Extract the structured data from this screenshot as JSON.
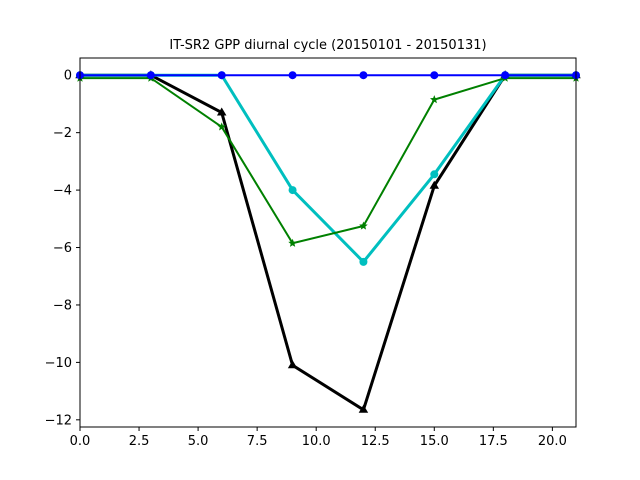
{
  "chart_data": {
    "type": "line",
    "title": "IT-SR2 GPP diurnal cycle (20150101 - 20150131)",
    "xlabel": "",
    "ylabel": "",
    "xlim": [
      0,
      21
    ],
    "ylim": [
      -12.25,
      0.6
    ],
    "grid": false,
    "legend": "none",
    "x": [
      0,
      3,
      6,
      9,
      12,
      15,
      18,
      21
    ],
    "x_ticks": [
      0.0,
      2.5,
      5.0,
      7.5,
      10.0,
      12.5,
      15.0,
      17.5,
      20.0
    ],
    "x_tick_labels": [
      "0.0",
      "2.5",
      "5.0",
      "7.5",
      "10.0",
      "12.5",
      "15.0",
      "17.5",
      "20.0"
    ],
    "y_ticks": [
      0,
      -2,
      -4,
      -6,
      -8,
      -10,
      -12
    ],
    "y_tick_labels": [
      "0",
      "−2",
      "−4",
      "−6",
      "−8",
      "−10",
      "−12"
    ],
    "series": [
      {
        "values": [
          0.0,
          0.0,
          -1.3,
          -10.1,
          -11.65,
          -3.85,
          0.0,
          0.0
        ],
        "color": "#000000",
        "marker": "triangle",
        "width": 3
      },
      {
        "values": [
          0.0,
          0.0,
          0.0,
          -4.0,
          -6.5,
          -3.45,
          0.0,
          0.0
        ],
        "color": "#00bfbf",
        "marker": "circle",
        "width": 3
      },
      {
        "values": [
          -0.1,
          -0.1,
          -1.8,
          -5.85,
          -5.25,
          -0.85,
          -0.1,
          -0.1
        ],
        "color": "#008000",
        "marker": "star",
        "width": 2
      },
      {
        "values": [
          0.0,
          0.0,
          0.0,
          0.0,
          0.0,
          0.0,
          0.0,
          0.0
        ],
        "color": "#0000ff",
        "marker": "circle",
        "width": 2
      }
    ]
  }
}
